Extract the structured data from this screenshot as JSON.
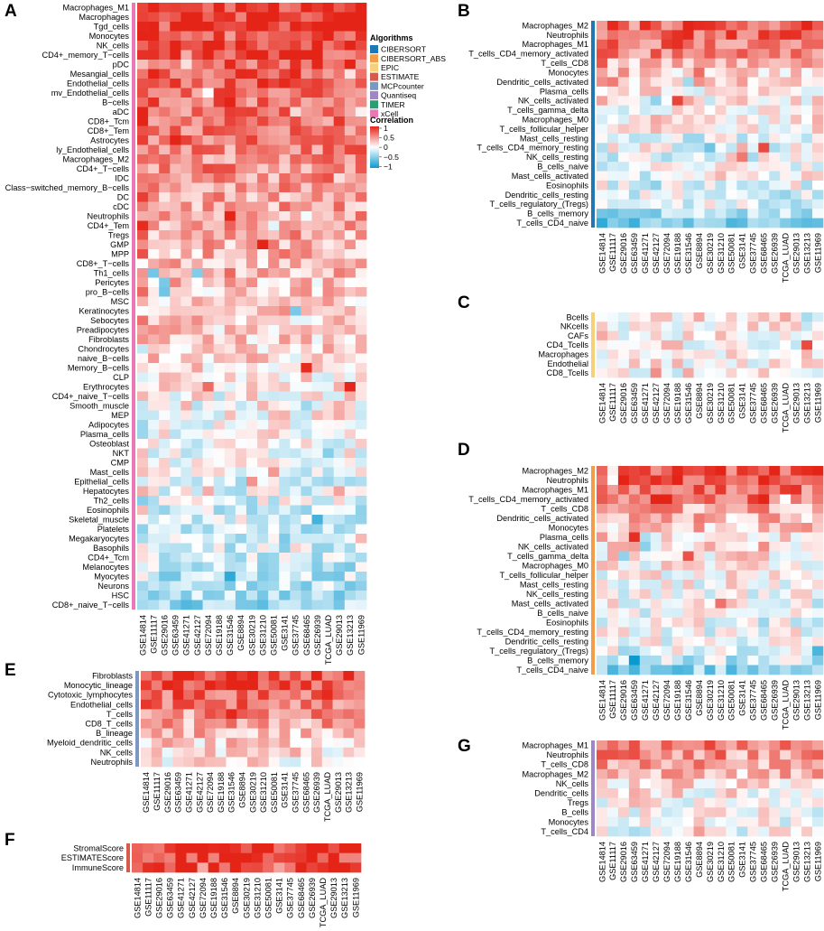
{
  "datasets": [
    "GSE14814",
    "GSE11117",
    "GSE29016",
    "GSE63459",
    "GSE41271",
    "GSE42127",
    "GSE72094",
    "GSE19188",
    "GSE31546",
    "GSE8894",
    "GSE30219",
    "GSE31210",
    "GSE50081",
    "GSE3141",
    "GSE37745",
    "GSE68465",
    "GSE26939",
    "TCGA_LUAD",
    "GSE29013",
    "GSE13213",
    "GSE11969"
  ],
  "algorithms": [
    {
      "name": "CIBERSORT",
      "color": "#1f77b4"
    },
    {
      "name": "CIBERSORT_ABS",
      "color": "#f39c4a"
    },
    {
      "name": "EPIC",
      "color": "#f5d27a"
    },
    {
      "name": "ESTIMATE",
      "color": "#d85a4a"
    },
    {
      "name": "MCPcounter",
      "color": "#7b97c4"
    },
    {
      "name": "Quantiseq",
      "color": "#9e86c8"
    },
    {
      "name": "TIMER",
      "color": "#2a9d73"
    },
    {
      "name": "xCell",
      "color": "#e879b4"
    }
  ],
  "legend": {
    "algorithms_title": "Algorithms",
    "correlation_title": "Correlation",
    "ticks": [
      "1",
      "0.5",
      "0",
      "−0.5",
      "−1"
    ],
    "colors": {
      "pos": "#e52418",
      "mid": "#ffffff",
      "neg": "#0a9ad0"
    }
  },
  "chart_data": [
    {
      "panel": "A",
      "type": "heatmap",
      "algorithm": "xCell",
      "title": "",
      "xlabel": "",
      "ylabel": "",
      "value_range": [
        -1,
        1
      ],
      "rows": [
        "Macrophages_M1",
        "Macrophages",
        "Tgd_cells",
        "Monocytes",
        "NK_cells",
        "CD4+_memory_T−cells",
        "pDC",
        "Mesangial_cells",
        "Endothelial_cells",
        "mv_Endothelial_cells",
        "B−cells",
        "aDC",
        "CD8+_Tcm",
        "CD8+_Tem",
        "Astrocytes",
        "ly_Endothelial_cells",
        "Macrophages_M2",
        "CD4+_T−cells",
        "IDC",
        "Class−switched_memory_B−cells",
        "DC",
        "cDC",
        "Neutrophils",
        "CD4+_Tem",
        "Tregs",
        "GMP",
        "MPP",
        "CD8+_T−cells",
        "Th1_cells",
        "Pericytes",
        "pro_B−cells",
        "MSC",
        "Keratinocytes",
        "Sebocytes",
        "Preadipocytes",
        "Fibroblasts",
        "Chondrocytes",
        "naive_B−cells",
        "Memory_B−cells",
        "CLP",
        "Erythrocytes",
        "CD4+_naive_T−cells",
        "Smooth_muscle",
        "MEP",
        "Adipocytes",
        "Plasma_cells",
        "Osteoblast",
        "NKT",
        "CMP",
        "Mast_cells",
        "Epithelial_cells",
        "Hepatocytes",
        "Th2_cells",
        "Eosinophils",
        "Skeletal_muscle",
        "Platelets",
        "Megakaryocytes",
        "Basophils",
        "CD4+_Tcm",
        "Melanocytes",
        "Myocytes",
        "Neurons",
        "HSC",
        "CD8+_naive_T−cells"
      ],
      "row_mean": [
        0.88,
        0.86,
        0.84,
        0.84,
        0.82,
        0.82,
        0.76,
        0.74,
        0.72,
        0.72,
        0.66,
        0.64,
        0.62,
        0.6,
        0.58,
        0.56,
        0.54,
        0.52,
        0.46,
        0.44,
        0.42,
        0.42,
        0.4,
        0.4,
        0.38,
        0.36,
        0.34,
        0.32,
        0.3,
        0.28,
        0.26,
        0.24,
        0.22,
        0.2,
        0.2,
        0.2,
        0.18,
        0.16,
        0.14,
        0.1,
        0.08,
        0.06,
        0.06,
        0.04,
        0.02,
        0.02,
        0.0,
        -0.02,
        -0.04,
        -0.06,
        -0.08,
        -0.1,
        -0.12,
        -0.14,
        -0.16,
        -0.18,
        -0.2,
        -0.2,
        -0.22,
        -0.24,
        -0.26,
        -0.28,
        -0.32,
        -0.38
      ]
    },
    {
      "panel": "B",
      "type": "heatmap",
      "algorithm": "CIBERSORT",
      "title": "",
      "xlabel": "",
      "ylabel": "",
      "value_range": [
        -1,
        1
      ],
      "rows": [
        "Macrophages_M2",
        "Neutrophils",
        "Macrophages_M1",
        "T_cells_CD4_memory_activated",
        "T_cells_CD8",
        "Monocytes",
        "Dendritic_cells_activated",
        "Plasma_cells",
        "NK_cells_activated",
        "T_cells_gamma_delta",
        "Macrophages_M0",
        "T_cells_follicular_helper",
        "Mast_cells_resting",
        "T_cells_CD4_memory_resting",
        "NK_cells_resting",
        "B_cells_naive",
        "Mast_cells_activated",
        "Eosinophils",
        "Dendritic_cells_resting",
        "T_cells_regulatory_(Tregs)",
        "B_cells_memory",
        "T_cells_CD4_naive"
      ],
      "row_mean": [
        0.72,
        0.66,
        0.62,
        0.58,
        0.34,
        0.24,
        0.26,
        0.12,
        0.12,
        0.02,
        0.08,
        0.06,
        -0.1,
        -0.05,
        -0.08,
        -0.08,
        0.02,
        -0.06,
        -0.05,
        -0.1,
        -0.3,
        -0.55
      ]
    },
    {
      "panel": "C",
      "type": "heatmap",
      "algorithm": "EPIC",
      "title": "",
      "xlabel": "",
      "ylabel": "",
      "value_range": [
        -1,
        1
      ],
      "rows": [
        "Bcells",
        "NKcells",
        "CAFs",
        "CD4_Tcells",
        "Macrophages",
        "Endothelial",
        "CD8_Tcells"
      ],
      "row_mean": [
        0.12,
        0.08,
        0.1,
        0.06,
        0.04,
        0.08,
        0.02
      ]
    },
    {
      "panel": "D",
      "type": "heatmap",
      "algorithm": "CIBERSORT_ABS",
      "title": "",
      "xlabel": "",
      "ylabel": "",
      "value_range": [
        -1,
        1
      ],
      "rows": [
        "Macrophages_M2",
        "Neutrophils",
        "Macrophages_M1",
        "T_cells_CD4_memory_activated",
        "T_cells_CD8",
        "Dendritic_cells_activated",
        "Monocytes",
        "Plasma_cells",
        "NK_cells_activated",
        "T_cells_gamma_delta",
        "Macrophages_M0",
        "T_cells_follicular_helper",
        "Mast_cells_resting",
        "NK_cells_resting",
        "Mast_cells_activated",
        "B_cells_naive",
        "Eosinophils",
        "T_cells_CD4_memory_resting",
        "Dendritic_cells_resting",
        "T_cells_regulatory_(Tregs)",
        "B_cells_memory",
        "T_cells_CD4_naive"
      ],
      "row_mean": [
        0.74,
        0.7,
        0.66,
        0.62,
        0.4,
        0.3,
        0.26,
        0.18,
        0.12,
        0.1,
        0.08,
        0.06,
        0.04,
        0.02,
        0.04,
        0.0,
        -0.02,
        -0.04,
        -0.06,
        -0.1,
        -0.22,
        -0.42
      ]
    },
    {
      "panel": "E",
      "type": "heatmap",
      "algorithm": "MCPcounter",
      "title": "",
      "xlabel": "",
      "ylabel": "",
      "value_range": [
        -1,
        1
      ],
      "rows": [
        "Fibroblasts",
        "Monocytic_lineage",
        "Cytotoxic_lymphocytes",
        "Endothelial_cells",
        "T_cells",
        "CD8_T_cells",
        "B_lineage",
        "Myeloid_dendritic_cells",
        "NK_cells",
        "Neutrophils"
      ],
      "row_mean": [
        0.82,
        0.8,
        0.7,
        0.6,
        0.48,
        0.42,
        0.32,
        0.22,
        0.14,
        0.08
      ]
    },
    {
      "panel": "F",
      "type": "heatmap",
      "algorithm": "ESTIMATE",
      "title": "",
      "xlabel": "",
      "ylabel": "",
      "value_range": [
        -1,
        1
      ],
      "rows": [
        "StromalScore",
        "ESTIMATEScore",
        "ImmuneScore"
      ],
      "row_mean": [
        0.86,
        0.88,
        0.86
      ]
    },
    {
      "panel": "G",
      "type": "heatmap",
      "algorithm": "Quantiseq",
      "title": "",
      "xlabel": "",
      "ylabel": "",
      "value_range": [
        -1,
        1
      ],
      "rows": [
        "Macrophages_M1",
        "Neutrophils",
        "T_cells_CD8",
        "Macrophages_M2",
        "NK_cells",
        "Dendritic_cells",
        "Tregs",
        "B_cells",
        "Monocytes",
        "T_cells_CD4"
      ],
      "row_mean": [
        0.62,
        0.5,
        0.42,
        0.3,
        0.14,
        0.08,
        0.06,
        0.04,
        0.0,
        -0.04
      ]
    }
  ]
}
